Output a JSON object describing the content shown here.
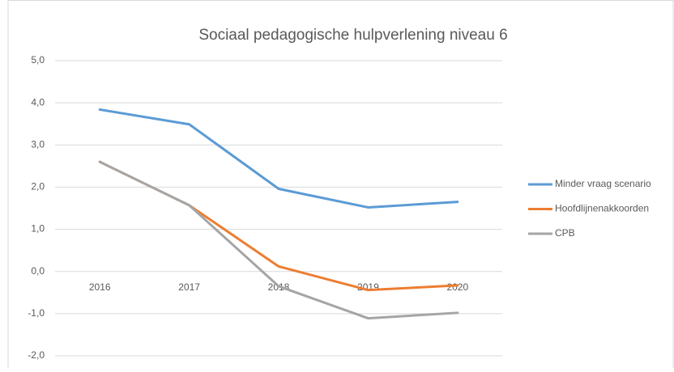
{
  "chart_data": {
    "type": "line",
    "title": "Sociaal pedagogische hulpverlening niveau 6",
    "categories": [
      "2016",
      "2017",
      "2018",
      "2019",
      "2020"
    ],
    "series": [
      {
        "name": "Minder vraag scenario",
        "color": "#5b9bd5",
        "values": [
          3.84,
          3.49,
          1.96,
          1.52,
          1.65
        ]
      },
      {
        "name": "Hoofdlijnenakkoorden",
        "color": "#ed7d31",
        "values": [
          2.6,
          1.57,
          0.12,
          -0.44,
          -0.33
        ]
      },
      {
        "name": "CPB",
        "color": "#a5a5a5",
        "values": [
          2.6,
          1.57,
          -0.35,
          -1.11,
          -0.98
        ]
      }
    ],
    "ylim": [
      -2,
      5
    ],
    "yticks": [
      {
        "value": -2,
        "label": "-2,0"
      },
      {
        "value": -1,
        "label": "-1,0"
      },
      {
        "value": 0,
        "label": "0,0"
      },
      {
        "value": 1,
        "label": "1,0"
      },
      {
        "value": 2,
        "label": "2,0"
      },
      {
        "value": 3,
        "label": "3,0"
      },
      {
        "value": 4,
        "label": "4,0"
      },
      {
        "value": 5,
        "label": "5,0"
      }
    ],
    "grid": true,
    "legend": "right"
  }
}
